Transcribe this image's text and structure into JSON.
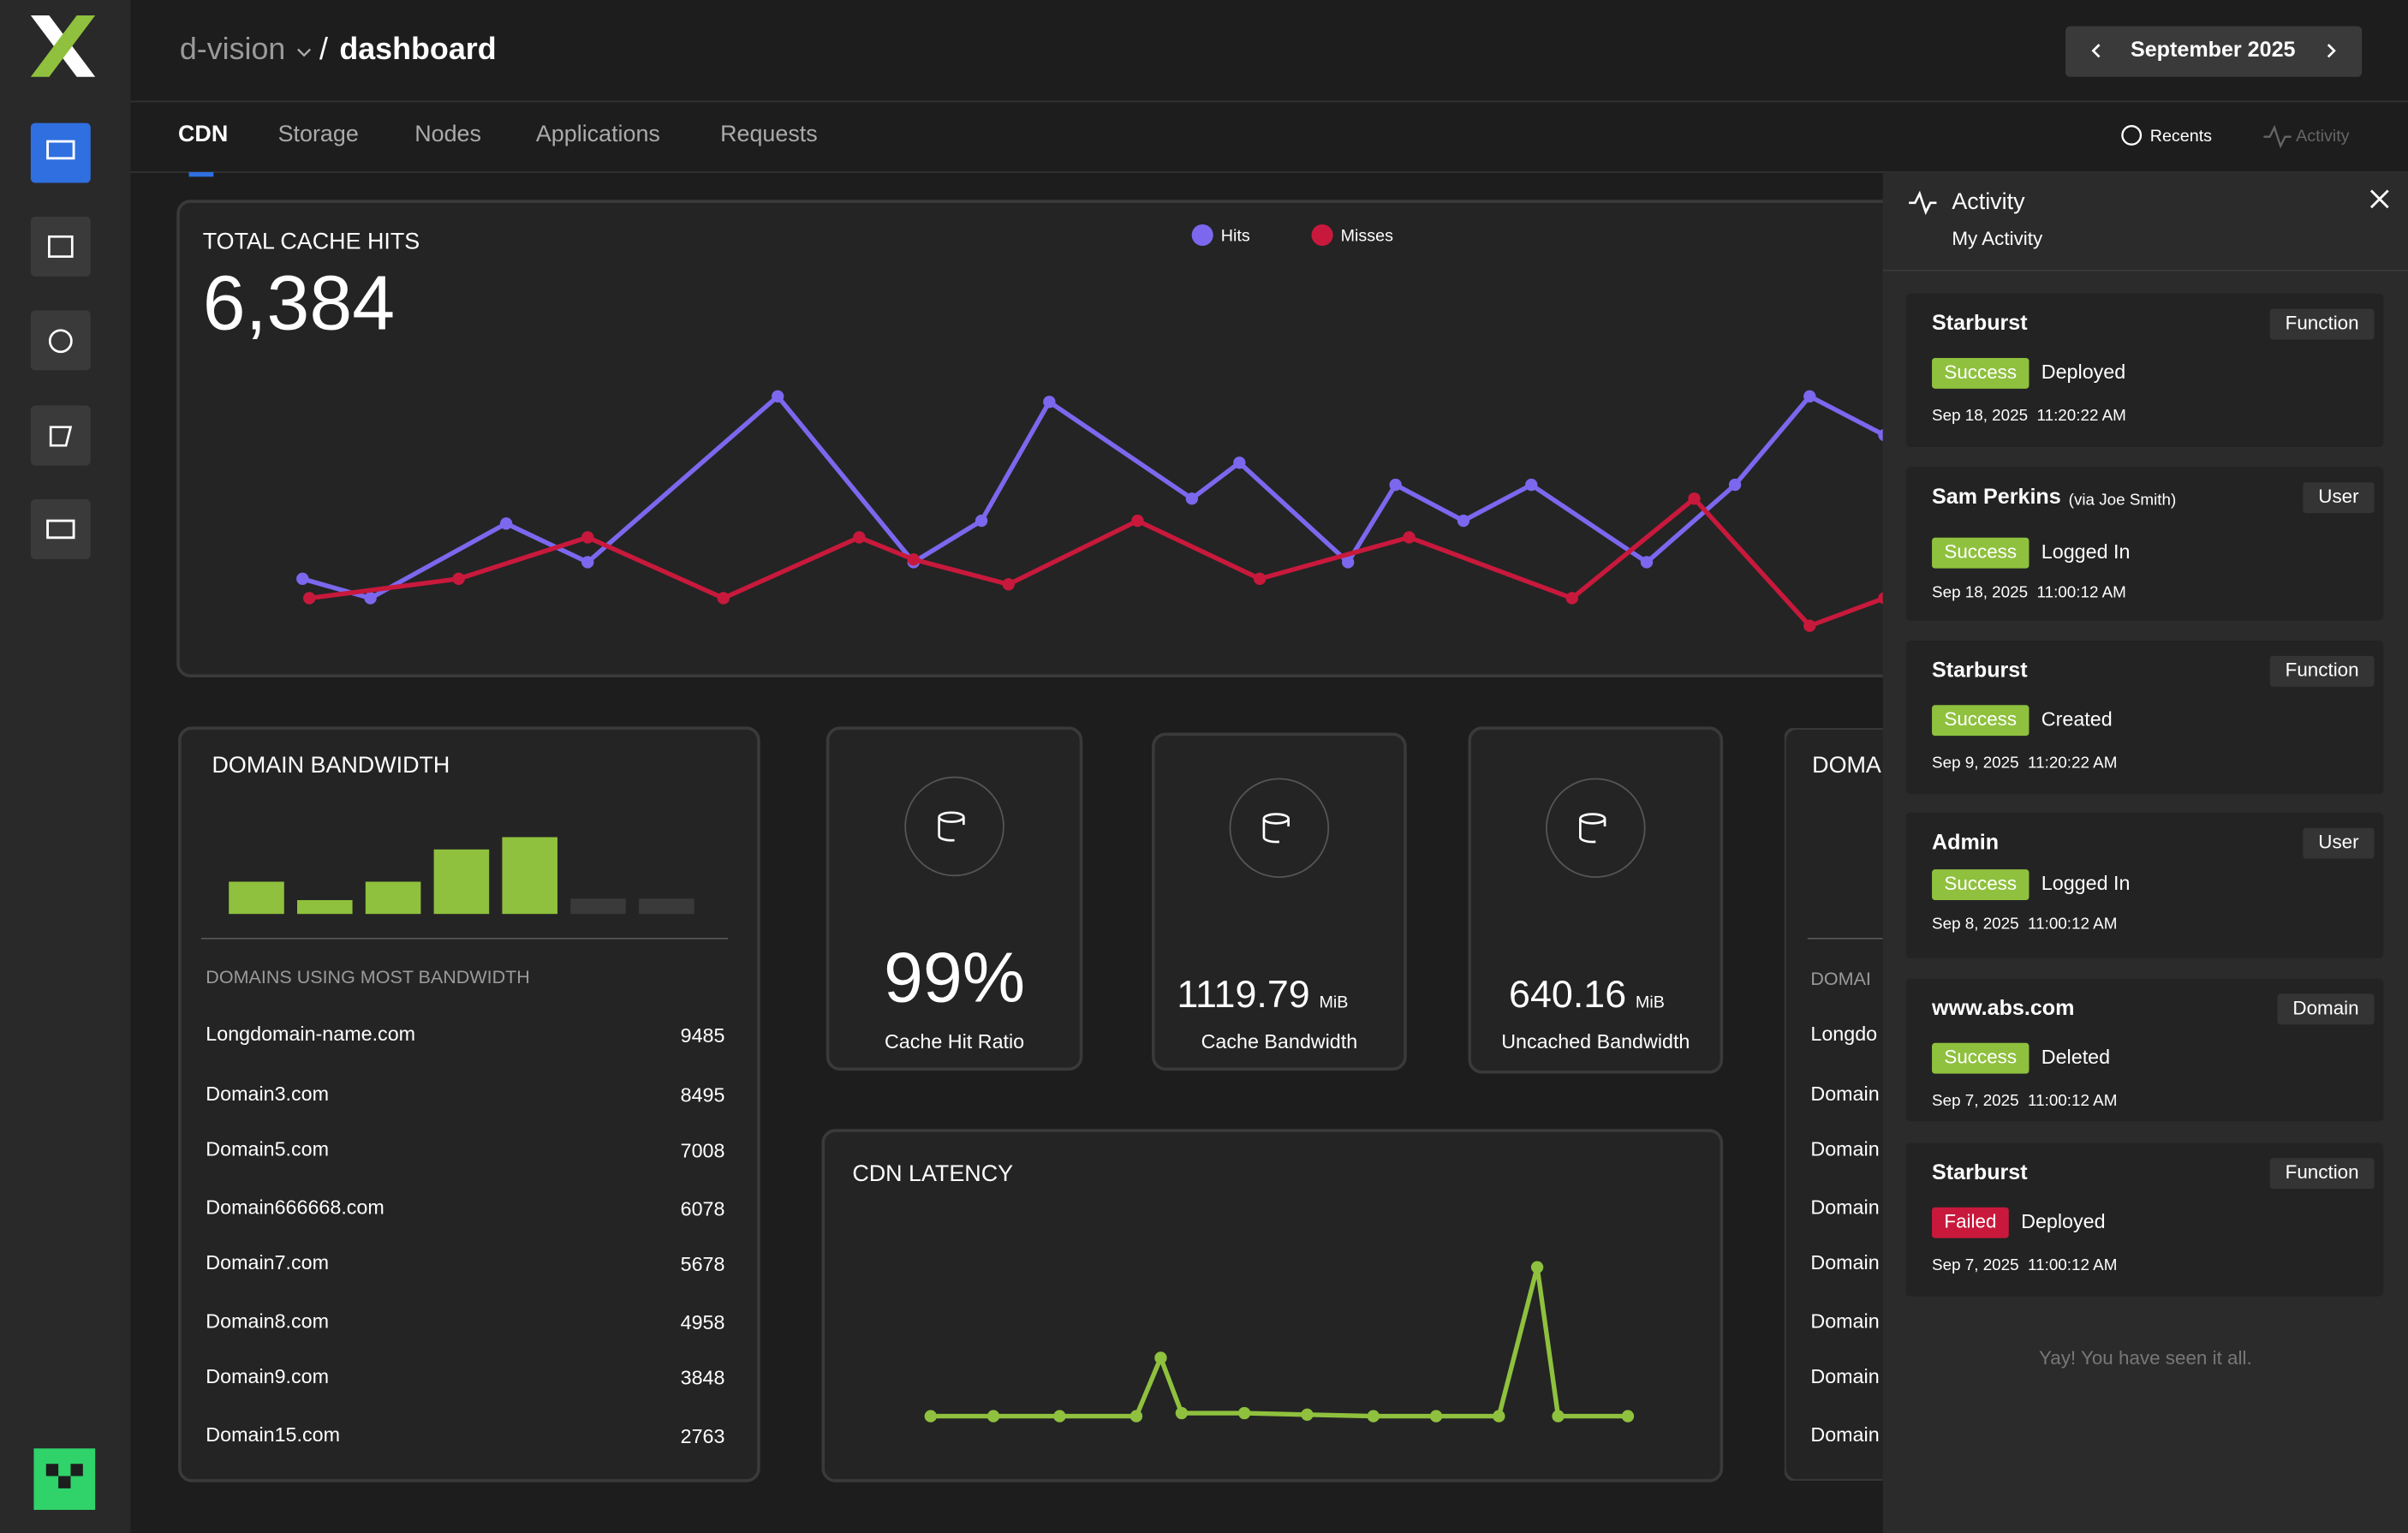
{
  "header": {
    "org": "d-vision",
    "separator": "/",
    "page": "dashboard",
    "month": "September 2025"
  },
  "tabs": [
    "CDN",
    "Storage",
    "Nodes",
    "Applications",
    "Requests"
  ],
  "toolbar": {
    "recents": "Recents",
    "activity": "Activity"
  },
  "chart_data": [
    {
      "type": "line",
      "title": "TOTAL CACHE HITS",
      "total": "6,384",
      "xlim": [
        1,
        30
      ],
      "ylim": [
        0,
        100
      ],
      "series": [
        {
          "name": "Hits",
          "color": "#7b68ee",
          "x": [
            1,
            2,
            4,
            5.2,
            8,
            10,
            11,
            12,
            14.1,
            14.8,
            16.4,
            17.1,
            18.1,
            19.1,
            20.8,
            22.1,
            23.2,
            24.3
          ],
          "values": [
            24,
            17,
            44,
            30,
            90,
            30,
            45,
            88,
            53,
            66,
            30,
            58,
            45,
            58,
            30,
            58,
            90,
            76
          ]
        },
        {
          "name": "Misses",
          "color": "#c8193c",
          "x": [
            1.1,
            3.3,
            5.2,
            7.2,
            9.2,
            10,
            11.4,
            13.3,
            15.1,
            17.3,
            19.7,
            21.5,
            23.2,
            24.3
          ],
          "values": [
            17,
            24,
            39,
            17,
            39,
            31,
            22,
            45,
            24,
            39,
            17,
            53,
            7,
            17
          ]
        }
      ]
    },
    {
      "type": "bar",
      "title": "DOMAIN BANDWIDTH",
      "ylim": [
        0,
        50
      ],
      "values": [
        21,
        9,
        21,
        42,
        50,
        10,
        10
      ],
      "colors": [
        "#8fc13e",
        "#8fc13e",
        "#8fc13e",
        "#8fc13e",
        "#8fc13e",
        "#3a3a3a",
        "#3a3a3a"
      ]
    },
    {
      "type": "line",
      "title": "CDN LATENCY",
      "xlim": [
        0,
        100
      ],
      "ylim": [
        0,
        110
      ],
      "series": [
        {
          "color": "#8fc13e",
          "x": [
            0,
            9,
            18.5,
            29.5,
            33,
            36,
            45,
            54,
            63.5,
            72.5,
            81.5,
            87,
            90,
            100
          ],
          "values": [
            8,
            8,
            8,
            8,
            46,
            10,
            10,
            9,
            8,
            8,
            8,
            105,
            8,
            8
          ]
        }
      ]
    }
  ],
  "domains": {
    "heading": "DOMAINS USING MOST BANDWIDTH",
    "rows": [
      [
        "Longdomain-name.com",
        9485
      ],
      [
        "Domain3.com",
        8495
      ],
      [
        "Domain5.com",
        7008
      ],
      [
        "Domain666668.com",
        6078
      ],
      [
        "Domain7.com",
        5678
      ],
      [
        "Domain8.com",
        4958
      ],
      [
        "Domain9.com",
        3848
      ],
      [
        "Domain15.com",
        2763
      ]
    ]
  },
  "stats": [
    {
      "value": "99%",
      "label": "Cache Hit Ratio"
    },
    {
      "value": "1119.79",
      "unit": "MiB",
      "label": "Cache Bandwidth"
    },
    {
      "value": "640.16",
      "unit": "MiB",
      "label": "Uncached Bandwidth"
    }
  ],
  "domain_card_2": {
    "title": "DOMA",
    "heading": "DOMAI",
    "rows": [
      "Longdo",
      "Domain",
      "Domain",
      "Domain",
      "Domain",
      "Domain",
      "Domain",
      "Domain"
    ]
  },
  "activity": {
    "title": "Activity",
    "subtitle": "My Activity",
    "footer": "Yay! You have seen it all.",
    "items": [
      {
        "title": "Starburst",
        "tag": "Function",
        "status": "Success",
        "action": "Deployed",
        "time": "Sep 18, 2025  11:20:22 AM"
      },
      {
        "title": "Sam Perkins",
        "via": "(via Joe Smith)",
        "tag": "User",
        "status": "Success",
        "action": "Logged In",
        "time": "Sep 18, 2025  11:00:12 AM"
      },
      {
        "title": "Starburst",
        "tag": "Function",
        "status": "Success",
        "action": "Created",
        "time": "Sep 9, 2025  11:20:22 AM"
      },
      {
        "title": "Admin",
        "tag": "User",
        "status": "Success",
        "action": "Logged In",
        "time": "Sep 8, 2025  11:00:12 AM"
      },
      {
        "title": "www.abs.com",
        "tag": "Domain",
        "status": "Success",
        "action": "Deleted",
        "time": "Sep 7, 2025  11:00:12 AM"
      },
      {
        "title": "Starburst",
        "tag": "Function",
        "status": "Failed",
        "action": "Deployed",
        "time": "Sep 7, 2025  11:00:12 AM"
      }
    ]
  }
}
